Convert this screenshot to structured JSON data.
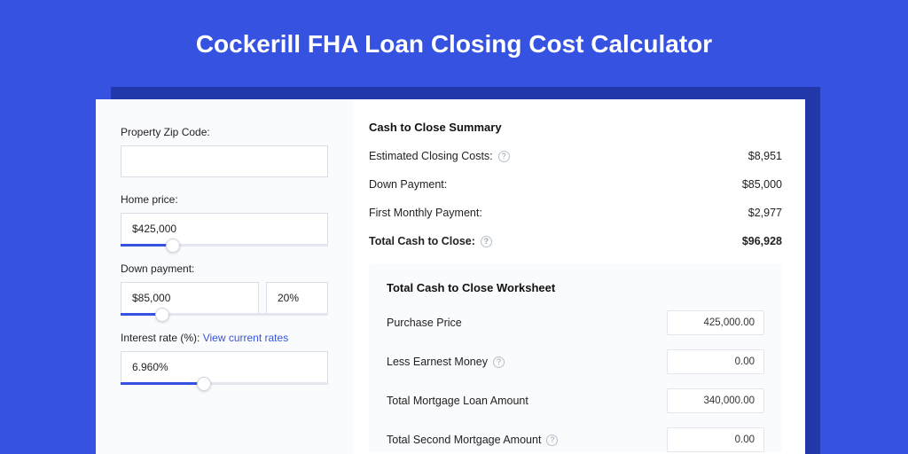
{
  "colors": {
    "page_bg": "#3652e0",
    "card_bg": "#ffffff",
    "left_panel_bg": "#fafbfd",
    "shadow_bg": "#2238a8",
    "accent": "#3652e0",
    "input_border": "#d9dde5",
    "text": "#222222",
    "help_border": "#b8bec9"
  },
  "title": "Cockerill FHA Loan Closing Cost Calculator",
  "left": {
    "zip": {
      "label": "Property Zip Code:",
      "value": ""
    },
    "home_price": {
      "label": "Home price:",
      "value": "$425,000",
      "slider_pct": 25
    },
    "down_payment": {
      "label": "Down payment:",
      "value": "$85,000",
      "pct": "20%",
      "slider_pct": 20
    },
    "interest": {
      "label_prefix": "Interest rate (%): ",
      "link_text": "View current rates",
      "value": "6.960%",
      "slider_pct": 40
    }
  },
  "summary": {
    "heading": "Cash to Close Summary",
    "rows": [
      {
        "label": "Estimated Closing Costs:",
        "value": "$8,951",
        "help": true
      },
      {
        "label": "Down Payment:",
        "value": "$85,000",
        "help": false
      },
      {
        "label": "First Monthly Payment:",
        "value": "$2,977",
        "help": false
      }
    ],
    "total": {
      "label": "Total Cash to Close:",
      "value": "$96,928",
      "help": true
    }
  },
  "worksheet": {
    "heading": "Total Cash to Close Worksheet",
    "rows": [
      {
        "label": "Purchase Price",
        "value": "425,000.00",
        "help": false
      },
      {
        "label": "Less Earnest Money",
        "value": "0.00",
        "help": true
      },
      {
        "label": "Total Mortgage Loan Amount",
        "value": "340,000.00",
        "help": false
      },
      {
        "label": "Total Second Mortgage Amount",
        "value": "0.00",
        "help": true
      }
    ]
  }
}
